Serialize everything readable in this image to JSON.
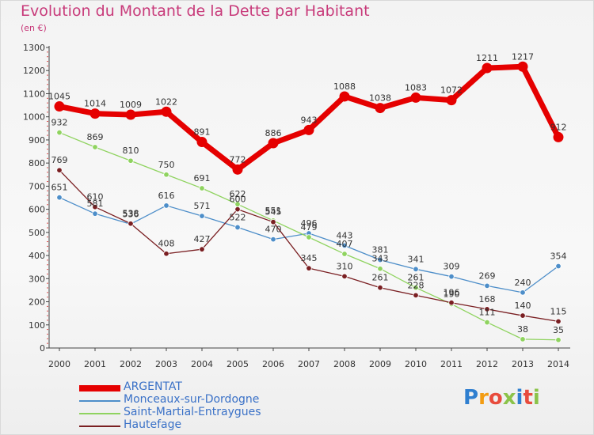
{
  "header": {
    "title": "Evolution du Montant de la Dette par Habitant",
    "subtitle": "(en €)"
  },
  "logo": {
    "text": "Proxiti",
    "colors": [
      "#2f7fd0",
      "#f39c12",
      "#e84c3d",
      "#8bc34a",
      "#2f7fd0",
      "#e84c3d",
      "#8bc34a"
    ]
  },
  "chart_data": {
    "type": "line",
    "title": "Evolution du Montant de la Dette par Habitant",
    "subtitle": "(en €)",
    "xlabel": "",
    "ylabel": "",
    "ylim": [
      0,
      1300
    ],
    "yticks": [
      0,
      100,
      200,
      300,
      400,
      500,
      600,
      700,
      800,
      900,
      1000,
      1100,
      1200,
      1300
    ],
    "grid": false,
    "legend_position": "bottom-left",
    "x": [
      "2000",
      "2001",
      "2002",
      "2003",
      "2004",
      "2005",
      "2006",
      "2007",
      "2008",
      "2009",
      "2010",
      "2011",
      "2012",
      "2013",
      "2014"
    ],
    "series": [
      {
        "name": "ARGENTAT",
        "color": "#e50000",
        "values": [
          1045,
          1014,
          1009,
          1022,
          891,
          772,
          886,
          943,
          1088,
          1038,
          1083,
          1072,
          1211,
          1217,
          912
        ]
      },
      {
        "name": "Monceaux-sur-Dordogne",
        "color": "#4d8ec9",
        "values": [
          651,
          581,
          536,
          616,
          571,
          522,
          470,
          496,
          443,
          381,
          341,
          309,
          269,
          240,
          354
        ]
      },
      {
        "name": "Saint-Martial-Entraygues",
        "color": "#8fd35f",
        "values": [
          932,
          869,
          810,
          750,
          691,
          622,
          551,
          479,
          407,
          343,
          261,
          190,
          111,
          38,
          35
        ]
      },
      {
        "name": "Hautefage",
        "color": "#7a1f22",
        "values": [
          769,
          610,
          538,
          408,
          427,
          600,
          545,
          345,
          310,
          261,
          228,
          196,
          168,
          140,
          115
        ]
      }
    ]
  }
}
